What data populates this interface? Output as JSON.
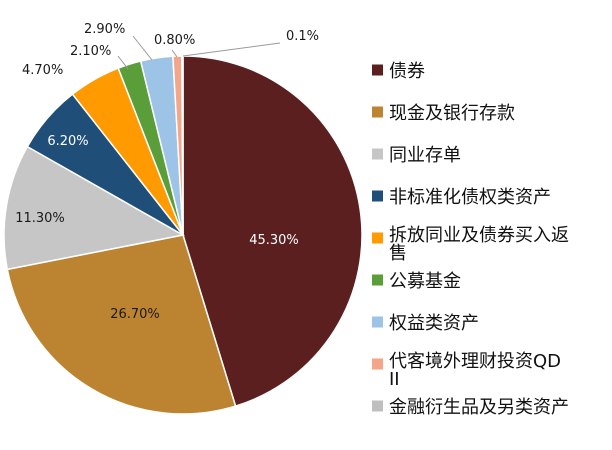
{
  "chart_data": {
    "type": "pie",
    "title": "",
    "categories": [
      "债券",
      "现金及银行存款",
      "同业存单",
      "非标准化债权类资产",
      "拆放同业及债券买入返售",
      "公募基金",
      "权益类资产",
      "代客境外理财投资QDII",
      "金融衍生品及另类资产"
    ],
    "values": [
      45.3,
      26.7,
      11.3,
      6.2,
      4.7,
      2.1,
      2.9,
      0.8,
      0.1
    ],
    "labels": [
      "45.30%",
      "26.70%",
      "11.30%",
      "6.20%",
      "4.70%",
      "2.10%",
      "2.90%",
      "0.80%",
      "0.1%"
    ],
    "colors": [
      "#5b1f1f",
      "#bc8431",
      "#c6c6c6",
      "#1f4e79",
      "#ff9a00",
      "#5a9e3a",
      "#9dc3e6",
      "#f4a58a",
      "#bfbfbf"
    ],
    "legend_position": "right",
    "start_angle_deg": 0,
    "direction": "clockwise"
  }
}
